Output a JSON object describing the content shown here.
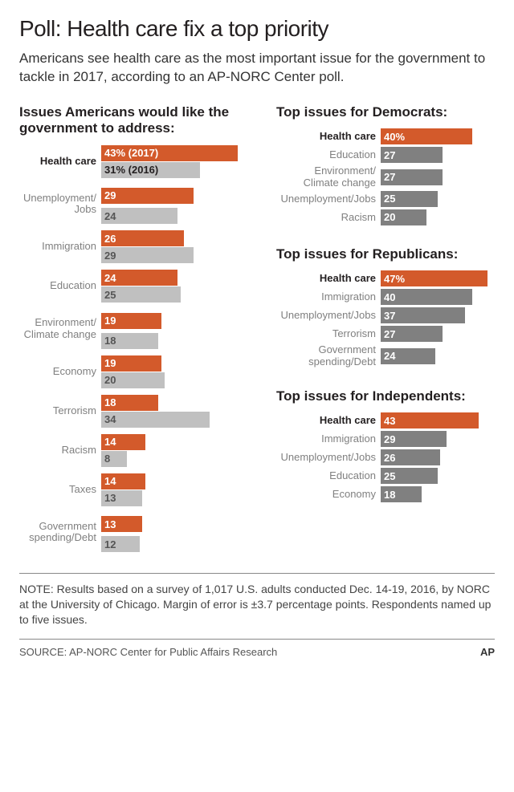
{
  "title": "Poll: Health care fix a top priority",
  "subtitle": "Americans see health care as the most important issue for the government to tackle in 2017, according to an AP-NORC Center poll.",
  "colors": {
    "bar_2017": "#d35a2b",
    "bar_2016": "#c0c0c0",
    "bar_party_top": "#d35a2b",
    "bar_party_other": "#808080",
    "text": "#231f20",
    "label_gray": "#808080"
  },
  "left": {
    "heading": "Issues Americans would like the government to address:",
    "max_value": 50,
    "rows": [
      {
        "label": "Health care",
        "bold": true,
        "v2017": 43,
        "v2016": 31,
        "v2017_label": "43% (2017)",
        "v2016_label": "31% (2016)"
      },
      {
        "label": "Unemployment/\nJobs",
        "v2017": 29,
        "v2016": 24,
        "v2017_label": "29",
        "v2016_label": "24"
      },
      {
        "label": "Immigration",
        "v2017": 26,
        "v2016": 29,
        "v2017_label": "26",
        "v2016_label": "29"
      },
      {
        "label": "Education",
        "v2017": 24,
        "v2016": 25,
        "v2017_label": "24",
        "v2016_label": "25"
      },
      {
        "label": "Environment/\nClimate change",
        "v2017": 19,
        "v2016": 18,
        "v2017_label": "19",
        "v2016_label": "18"
      },
      {
        "label": "Economy",
        "v2017": 19,
        "v2016": 20,
        "v2017_label": "19",
        "v2016_label": "20"
      },
      {
        "label": "Terrorism",
        "v2017": 18,
        "v2016": 34,
        "v2017_label": "18",
        "v2016_label": "34"
      },
      {
        "label": "Racism",
        "v2017": 14,
        "v2016": 8,
        "v2017_label": "14",
        "v2016_label": "8"
      },
      {
        "label": "Taxes",
        "v2017": 14,
        "v2016": 13,
        "v2017_label": "14",
        "v2016_label": "13"
      },
      {
        "label": "Government\nspending/Debt",
        "v2017": 13,
        "v2016": 12,
        "v2017_label": "13",
        "v2016_label": "12"
      }
    ]
  },
  "right": {
    "max_value": 50,
    "sections": [
      {
        "heading": "Top issues for Democrats:",
        "rows": [
          {
            "label": "Health care",
            "value": 40,
            "value_label": "40%",
            "highlight": true
          },
          {
            "label": "Education",
            "value": 27,
            "value_label": "27"
          },
          {
            "label": "Environment/\nClimate change",
            "value": 27,
            "value_label": "27"
          },
          {
            "label": "Unemployment/Jobs",
            "value": 25,
            "value_label": "25"
          },
          {
            "label": "Racism",
            "value": 20,
            "value_label": "20"
          }
        ]
      },
      {
        "heading": "Top issues for Republicans:",
        "rows": [
          {
            "label": "Health care",
            "value": 47,
            "value_label": "47%",
            "highlight": true
          },
          {
            "label": "Immigration",
            "value": 40,
            "value_label": "40"
          },
          {
            "label": "Unemployment/Jobs",
            "value": 37,
            "value_label": "37"
          },
          {
            "label": "Terrorism",
            "value": 27,
            "value_label": "27"
          },
          {
            "label": "Government spending/Debt",
            "value": 24,
            "value_label": "24"
          }
        ]
      },
      {
        "heading": "Top issues for Independents:",
        "rows": [
          {
            "label": "Health care",
            "value": 43,
            "value_label": "43",
            "highlight": true
          },
          {
            "label": "Immigration",
            "value": 29,
            "value_label": "29"
          },
          {
            "label": "Unemployment/Jobs",
            "value": 26,
            "value_label": "26"
          },
          {
            "label": "Education",
            "value": 25,
            "value_label": "25"
          },
          {
            "label": "Economy",
            "value": 18,
            "value_label": "18"
          }
        ]
      }
    ]
  },
  "note": "NOTE: Results based on a survey of 1,017 U.S. adults conducted Dec. 14-19, 2016, by NORC at the University of Chicago. Margin of error is ±3.7 percentage points. Respondents named up to five issues.",
  "source": "SOURCE: AP-NORC Center for Public Affairs Research",
  "credit": "AP"
}
